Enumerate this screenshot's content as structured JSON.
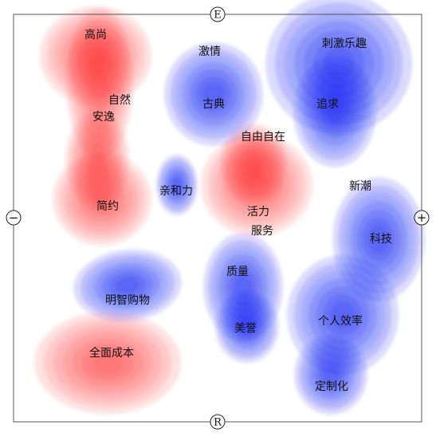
{
  "axes": {
    "top": "E",
    "bottom": "R",
    "left": "−",
    "right": "+"
  },
  "colors": {
    "positive": "#0a16f0",
    "negative": "#ff3030",
    "frame": "#555555",
    "background": "#ffffff"
  },
  "terms": [
    "高尚",
    "激情",
    "刺激乐趣",
    "自然",
    "安逸",
    "古典",
    "追求",
    "自由自在",
    "亲和力",
    "简约",
    "活力",
    "服务",
    "新潮",
    "科技",
    "质量",
    "明智购物",
    "美誉",
    "个人效率",
    "全面成本",
    "定制化"
  ]
}
